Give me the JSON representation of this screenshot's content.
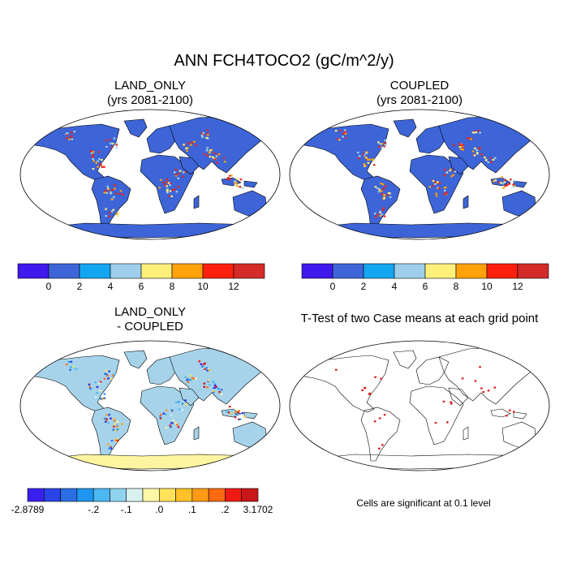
{
  "figure": {
    "title": "ANN FCH4TOCO2 (gC/m^2/y)",
    "note": "Cells are significant at 0.1 level"
  },
  "colors": {
    "land_blue": "#3d65d8",
    "ocean": "#ffffff",
    "diff_land": "#a6d3ea",
    "diff_antarctica": "#fff5a0"
  },
  "chart_data": [
    {
      "type": "heatmap",
      "projection": "robinson",
      "title": "LAND_ONLY",
      "subtitle": "(yrs 2081-2100)",
      "colorbar": {
        "labels": [
          "0",
          "2",
          "4",
          "6",
          "8",
          "10",
          "12"
        ],
        "colors": [
          "#3f19ee",
          "#3d65d8",
          "#14a6f2",
          "#9dcfec",
          "#fff07c",
          "#ffa20c",
          "#fc1f0e",
          "#d42a28"
        ]
      }
    },
    {
      "type": "heatmap",
      "projection": "robinson",
      "title": "COUPLED",
      "subtitle": "(yrs 2081-2100)",
      "colorbar": {
        "labels": [
          "0",
          "2",
          "4",
          "6",
          "8",
          "10",
          "12"
        ],
        "colors": [
          "#3f19ee",
          "#3d65d8",
          "#14a6f2",
          "#9dcfec",
          "#fff07c",
          "#ffa20c",
          "#fc1f0e",
          "#d42a28"
        ]
      }
    },
    {
      "type": "heatmap",
      "projection": "robinson",
      "title": "LAND_ONLY",
      "subtitle": "- COUPLED",
      "colorbar": {
        "labels": [
          "-2.8789",
          "-.2",
          "-.1",
          ".0",
          ".1",
          ".2",
          "3.1702"
        ],
        "colors": [
          "#3a1ff0",
          "#2b44e8",
          "#2a6ee4",
          "#1e95f0",
          "#4bb8f2",
          "#8fd3ef",
          "#d9f2f0",
          "#fff7a8",
          "#ffe25a",
          "#ffc12a",
          "#ff9a15",
          "#ff6a10",
          "#ef1a12",
          "#c8161a"
        ]
      }
    },
    {
      "type": "heatmap",
      "projection": "robinson",
      "title": "T-Test of two Case means at each grid point",
      "subtitle": ""
    }
  ]
}
